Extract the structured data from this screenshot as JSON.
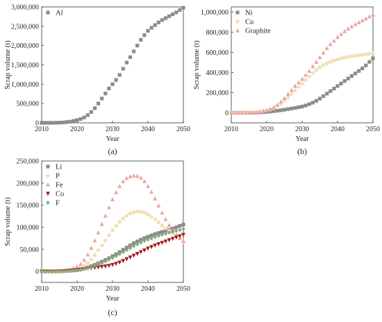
{
  "chart_data": [
    {
      "type": "scatter",
      "panel": "(a)",
      "xlabel": "Year",
      "ylabel": "Scrap volume (t)",
      "xlim": [
        2010,
        2050
      ],
      "ylim": [
        0,
        3000000
      ],
      "x_ticks": [
        "2010",
        "2020",
        "2030",
        "2040",
        "2050"
      ],
      "y_ticks": [
        "0",
        "500,000",
        "1,000,000",
        "1,500,000",
        "2,000,000",
        "2,500,000",
        "3,000,000"
      ],
      "legend_position": "top-left",
      "series": [
        {
          "name": "Al",
          "marker": "square",
          "color": "#8c8c8c",
          "x": [
            2010,
            2011,
            2012,
            2013,
            2014,
            2015,
            2016,
            2017,
            2018,
            2019,
            2020,
            2021,
            2022,
            2023,
            2024,
            2025,
            2026,
            2027,
            2028,
            2029,
            2030,
            2031,
            2032,
            2033,
            2034,
            2035,
            2036,
            2037,
            2038,
            2039,
            2040,
            2041,
            2042,
            2043,
            2044,
            2045,
            2046,
            2047,
            2048,
            2049,
            2050
          ],
          "values": [
            0,
            0,
            0,
            0,
            2000,
            5000,
            10000,
            20000,
            30000,
            50000,
            70000,
            100000,
            140000,
            200000,
            280000,
            380000,
            500000,
            630000,
            760000,
            890000,
            1000000,
            1110000,
            1240000,
            1400000,
            1560000,
            1700000,
            1850000,
            2000000,
            2150000,
            2270000,
            2380000,
            2460000,
            2530000,
            2600000,
            2660000,
            2710000,
            2760000,
            2810000,
            2860000,
            2920000,
            2980000
          ]
        }
      ]
    },
    {
      "type": "scatter",
      "panel": "(b)",
      "xlabel": "Year",
      "ylabel": "Scrap volume (t)",
      "xlim": [
        2010,
        2050
      ],
      "ylim": [
        -100000,
        1050000
      ],
      "x_ticks": [
        "2010",
        "2020",
        "2030",
        "2040",
        "2050"
      ],
      "y_ticks": [
        "0",
        "200,000",
        "400,000",
        "600,000",
        "800,000",
        "1,000,000"
      ],
      "legend_position": "top-left",
      "series": [
        {
          "name": "Ni",
          "marker": "square",
          "color": "#8c8c8c",
          "x": [
            2010,
            2011,
            2012,
            2013,
            2014,
            2015,
            2016,
            2017,
            2018,
            2019,
            2020,
            2021,
            2022,
            2023,
            2024,
            2025,
            2026,
            2027,
            2028,
            2029,
            2030,
            2031,
            2032,
            2033,
            2034,
            2035,
            2036,
            2037,
            2038,
            2039,
            2040,
            2041,
            2042,
            2043,
            2044,
            2045,
            2046,
            2047,
            2048,
            2049,
            2050
          ],
          "values": [
            0,
            0,
            0,
            0,
            0,
            0,
            0,
            2000,
            4000,
            6000,
            8000,
            12000,
            16000,
            20000,
            25000,
            30000,
            36000,
            42000,
            48000,
            55000,
            62000,
            72000,
            85000,
            100000,
            118000,
            140000,
            165000,
            190000,
            215000,
            240000,
            265000,
            290000,
            315000,
            340000,
            365000,
            390000,
            415000,
            440000,
            470000,
            505000,
            540000
          ]
        },
        {
          "name": "Cu",
          "marker": "circle",
          "color": "#f3dfb8",
          "x": [
            2010,
            2011,
            2012,
            2013,
            2014,
            2015,
            2016,
            2017,
            2018,
            2019,
            2020,
            2021,
            2022,
            2023,
            2024,
            2025,
            2026,
            2027,
            2028,
            2029,
            2030,
            2031,
            2032,
            2033,
            2034,
            2035,
            2036,
            2037,
            2038,
            2039,
            2040,
            2041,
            2042,
            2043,
            2044,
            2045,
            2046,
            2047,
            2048,
            2049,
            2050
          ],
          "values": [
            0,
            0,
            0,
            0,
            0,
            2000,
            4000,
            6000,
            10000,
            15000,
            22000,
            32000,
            45000,
            65000,
            90000,
            120000,
            150000,
            185000,
            220000,
            255000,
            290000,
            325000,
            360000,
            395000,
            425000,
            450000,
            472000,
            490000,
            505000,
            518000,
            530000,
            540000,
            548000,
            555000,
            561000,
            566000,
            571000,
            576000,
            580000,
            585000,
            590000
          ]
        },
        {
          "name": "Graphite",
          "marker": "triangle-up",
          "color": "#e8a69e",
          "x": [
            2010,
            2011,
            2012,
            2013,
            2014,
            2015,
            2016,
            2017,
            2018,
            2019,
            2020,
            2021,
            2022,
            2023,
            2024,
            2025,
            2026,
            2027,
            2028,
            2029,
            2030,
            2031,
            2032,
            2033,
            2034,
            2035,
            2036,
            2037,
            2038,
            2039,
            2040,
            2041,
            2042,
            2043,
            2044,
            2045,
            2046,
            2047,
            2048,
            2049,
            2050
          ],
          "values": [
            0,
            0,
            0,
            0,
            0,
            2000,
            4000,
            7000,
            12000,
            18000,
            26000,
            38000,
            55000,
            80000,
            110000,
            145000,
            185000,
            225000,
            265000,
            300000,
            335000,
            375000,
            415000,
            460000,
            505000,
            550000,
            595000,
            640000,
            680000,
            715000,
            750000,
            780000,
            808000,
            833000,
            856000,
            877000,
            897000,
            916000,
            935000,
            955000,
            975000
          ]
        }
      ]
    },
    {
      "type": "scatter",
      "panel": "(c)",
      "xlabel": "Year",
      "ylabel": "Scrap volume (t)",
      "xlim": [
        2010,
        2050
      ],
      "ylim": [
        -25000,
        250000
      ],
      "x_ticks": [
        "2010",
        "2020",
        "2030",
        "2040",
        "2050"
      ],
      "y_ticks": [
        "0",
        "50,000",
        "100,000",
        "150,000",
        "200,000",
        "250,000"
      ],
      "legend_position": "top-left",
      "series": [
        {
          "name": "Li",
          "marker": "square",
          "color": "#8c8c8c",
          "x": [
            2010,
            2011,
            2012,
            2013,
            2014,
            2015,
            2016,
            2017,
            2018,
            2019,
            2020,
            2021,
            2022,
            2023,
            2024,
            2025,
            2026,
            2027,
            2028,
            2029,
            2030,
            2031,
            2032,
            2033,
            2034,
            2035,
            2036,
            2037,
            2038,
            2039,
            2040,
            2041,
            2042,
            2043,
            2044,
            2045,
            2046,
            2047,
            2048,
            2049,
            2050
          ],
          "values": [
            0,
            0,
            0,
            0,
            0,
            200,
            500,
            900,
            1500,
            2200,
            3000,
            4500,
            6500,
            9000,
            12000,
            15000,
            18500,
            22000,
            26000,
            30000,
            34500,
            39000,
            44000,
            49000,
            54000,
            59000,
            64000,
            68000,
            72000,
            75500,
            78500,
            81500,
            84500,
            87000,
            89500,
            92000,
            94500,
            97000,
            100000,
            103000,
            106000
          ]
        },
        {
          "name": "P",
          "marker": "circle",
          "color": "#f3dfb8",
          "x": [
            2010,
            2011,
            2012,
            2013,
            2014,
            2015,
            2016,
            2017,
            2018,
            2019,
            2020,
            2021,
            2022,
            2023,
            2024,
            2025,
            2026,
            2027,
            2028,
            2029,
            2030,
            2031,
            2032,
            2033,
            2034,
            2035,
            2036,
            2037,
            2038,
            2039,
            2040,
            2041,
            2042,
            2043,
            2044,
            2045,
            2046,
            2047,
            2048,
            2049,
            2050
          ],
          "values": [
            0,
            0,
            0,
            0,
            0,
            300,
            700,
            1300,
            2200,
            3500,
            5500,
            8500,
            13000,
            19000,
            27000,
            37000,
            48000,
            59000,
            70000,
            82000,
            93000,
            103000,
            112000,
            120000,
            126000,
            131000,
            134000,
            135500,
            135000,
            133000,
            129000,
            124000,
            118000,
            111000,
            104000,
            98000,
            92000,
            86000,
            81000,
            77000,
            66000
          ]
        },
        {
          "name": "Fe",
          "marker": "triangle-up",
          "color": "#e8a69e",
          "x": [
            2010,
            2011,
            2012,
            2013,
            2014,
            2015,
            2016,
            2017,
            2018,
            2019,
            2020,
            2021,
            2022,
            2023,
            2024,
            2025,
            2026,
            2027,
            2028,
            2029,
            2030,
            2031,
            2032,
            2033,
            2034,
            2035,
            2036,
            2037,
            2038,
            2039,
            2040,
            2041,
            2042,
            2043,
            2044,
            2045,
            2046,
            2047,
            2048,
            2049,
            2050
          ],
          "values": [
            0,
            0,
            0,
            0,
            0,
            500,
            1200,
            2500,
            4500,
            7000,
            11000,
            17000,
            26000,
            38000,
            53000,
            70000,
            88000,
            107000,
            126000,
            145000,
            163000,
            179000,
            193000,
            204000,
            211000,
            215000,
            217000,
            216000,
            212000,
            204000,
            193000,
            180000,
            165000,
            149000,
            133000,
            118000,
            105000,
            93000,
            83000,
            75000,
            69000
          ]
        },
        {
          "name": "Co",
          "marker": "triangle-down",
          "color": "#a51d1d",
          "x": [
            2010,
            2011,
            2012,
            2013,
            2014,
            2015,
            2016,
            2017,
            2018,
            2019,
            2020,
            2021,
            2022,
            2023,
            2024,
            2025,
            2026,
            2027,
            2028,
            2029,
            2030,
            2031,
            2032,
            2033,
            2034,
            2035,
            2036,
            2037,
            2038,
            2039,
            2040,
            2041,
            2042,
            2043,
            2044,
            2045,
            2046,
            2047,
            2048,
            2049,
            2050
          ],
          "values": [
            0,
            0,
            0,
            0,
            0,
            300,
            700,
            1200,
            1900,
            2700,
            3500,
            4500,
            5500,
            6500,
            7500,
            8500,
            9500,
            10500,
            11500,
            13000,
            15000,
            17500,
            20500,
            24000,
            28000,
            32000,
            36000,
            40000,
            44000,
            48000,
            52000,
            55500,
            59000,
            62000,
            65000,
            68000,
            71000,
            74000,
            77000,
            80000,
            83000
          ]
        },
        {
          "name": "F",
          "marker": "diamond",
          "color": "#86a878",
          "x": [
            2010,
            2011,
            2012,
            2013,
            2014,
            2015,
            2016,
            2017,
            2018,
            2019,
            2020,
            2021,
            2022,
            2023,
            2024,
            2025,
            2026,
            2027,
            2028,
            2029,
            2030,
            2031,
            2032,
            2033,
            2034,
            2035,
            2036,
            2037,
            2038,
            2039,
            2040,
            2041,
            2042,
            2043,
            2044,
            2045,
            2046,
            2047,
            2048,
            2049,
            2050
          ],
          "values": [
            0,
            0,
            0,
            0,
            0,
            200,
            500,
            900,
            1400,
            2100,
            2900,
            4000,
            5500,
            7500,
            10000,
            13000,
            16000,
            19500,
            23000,
            27000,
            31000,
            35000,
            39500,
            44000,
            48500,
            53000,
            57500,
            61500,
            65500,
            69000,
            72000,
            75000,
            78000,
            80500,
            83000,
            85500,
            88000,
            90000,
            92000,
            94000,
            96000
          ]
        }
      ]
    }
  ]
}
